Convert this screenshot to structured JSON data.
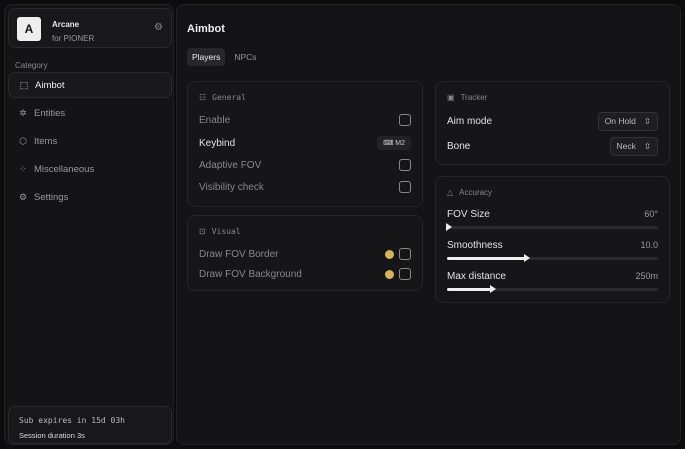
{
  "profile": {
    "initial": "A",
    "name": "Arcane",
    "subtitle": "for PIONER"
  },
  "sidebar": {
    "category_label": "Category",
    "items": [
      {
        "label": "Aimbot",
        "icon": "crosshair-icon",
        "glyph": "⬚",
        "active": true
      },
      {
        "label": "Entities",
        "icon": "entities-icon",
        "glyph": "✲"
      },
      {
        "label": "Items",
        "icon": "box-icon",
        "glyph": "⬡"
      },
      {
        "label": "Miscellaneous",
        "icon": "grid-icon",
        "glyph": "⁘"
      },
      {
        "label": "Settings",
        "icon": "gear-icon",
        "glyph": "⚙"
      }
    ]
  },
  "footer": {
    "sub": "Sub expires in 15d 03h",
    "session": "Session duration 3s"
  },
  "main": {
    "title": "Aimbot",
    "tabs": [
      {
        "label": "Players",
        "active": true
      },
      {
        "label": "NPCs"
      }
    ]
  },
  "general": {
    "title": "General",
    "enable": "Enable",
    "keybind": "Keybind",
    "keybind_value": "M2",
    "adaptive": "Adaptive FOV",
    "visibility": "Visibility check"
  },
  "visual": {
    "title": "Visual",
    "border": "Draw FOV Border",
    "background": "Draw FOV Background",
    "accent": "#d8b25c"
  },
  "tracker": {
    "title": "Tracker",
    "aim_mode": "Aim mode",
    "aim_mode_value": "On Hold",
    "bone": "Bone",
    "bone_value": "Neck"
  },
  "accuracy": {
    "title": "Accuracy",
    "sliders": [
      {
        "label": "FOV Size",
        "value": "60°",
        "fraction": 0.0
      },
      {
        "label": "Smoothness",
        "value": "10.0",
        "fraction": 0.37
      },
      {
        "label": "Max distance",
        "value": "250m",
        "fraction": 0.21
      }
    ]
  }
}
